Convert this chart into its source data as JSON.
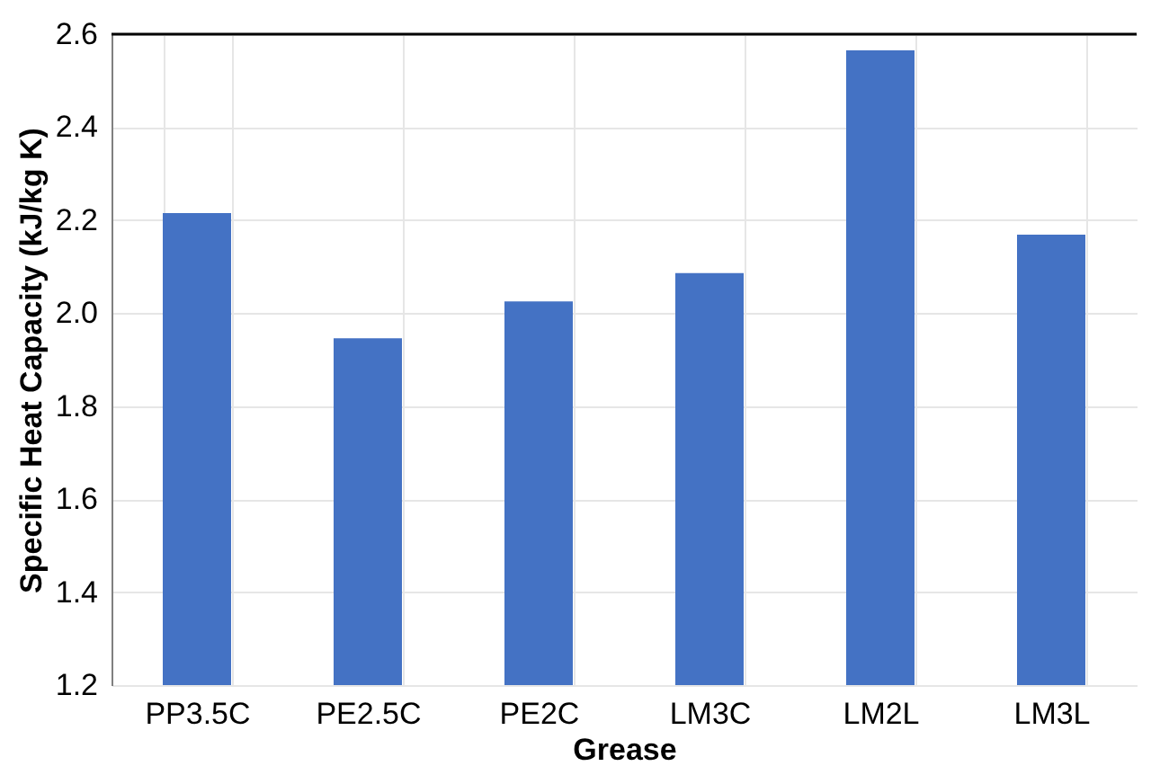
{
  "chart_data": {
    "type": "bar",
    "xlabel": "Grease",
    "ylabel": "Specific Heat Capacity (kJ/kg K)",
    "categories": [
      "PP3.5C",
      "PE2.5C",
      "PE2C",
      "LM3C",
      "LM2L",
      "LM3L"
    ],
    "values": [
      2.215,
      1.946,
      2.025,
      2.086,
      2.565,
      2.169
    ],
    "color": "#4472c4",
    "ylim": [
      1.2,
      2.6
    ],
    "yticks": [
      {
        "value": 1.2,
        "label": "1.2"
      },
      {
        "value": 1.4,
        "label": "1.4"
      },
      {
        "value": 1.6,
        "label": "1.6"
      },
      {
        "value": 1.8,
        "label": "1.8"
      },
      {
        "value": 2.0,
        "label": "2.0"
      },
      {
        "value": 2.2,
        "label": "2.2"
      },
      {
        "value": 2.4,
        "label": "2.4"
      },
      {
        "value": 2.6,
        "label": "2.6"
      }
    ],
    "grid": true
  }
}
